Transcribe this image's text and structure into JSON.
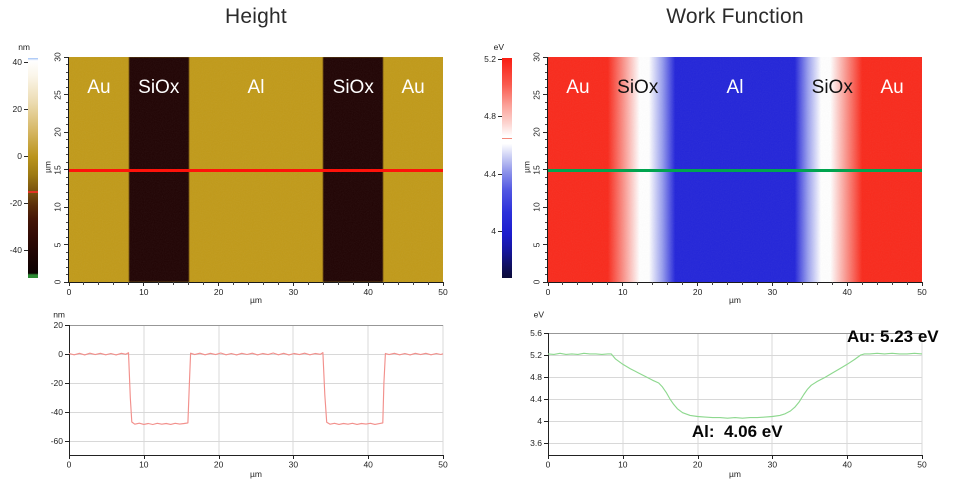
{
  "height_panel": {
    "title": "Height",
    "colorbar": {
      "unit": "nm",
      "top_value": 42,
      "bottom_value": -51.5,
      "ticks": [
        40,
        20,
        0,
        -20,
        -40
      ],
      "marker_value": -15,
      "marker_color": "#e23323",
      "stops": [
        [
          0,
          "#9fc0f5"
        ],
        [
          1.2,
          "#ffffff"
        ],
        [
          8,
          "#fbf6ea"
        ],
        [
          20,
          "#ecdcb2"
        ],
        [
          33,
          "#d6b765"
        ],
        [
          45,
          "#ba941c"
        ],
        [
          53,
          "#9d7a13"
        ],
        [
          61,
          "#77500e"
        ],
        [
          67,
          "#5a2d09"
        ],
        [
          73,
          "#451607"
        ],
        [
          81,
          "#320b05"
        ],
        [
          91,
          "#1a0403"
        ],
        [
          97.8,
          "#0c0101"
        ],
        [
          98.6,
          "#2d8a34"
        ],
        [
          100,
          "#2d8a34"
        ]
      ]
    },
    "map": {
      "base_color": "#c19a19",
      "band_color": "#200303",
      "label_colors": [
        "#ffffff",
        "#ffffff",
        "#ffffff",
        "#ffffff",
        "#ffffff"
      ],
      "scan_line_color": "#fe120a"
    }
  },
  "wf_panel": {
    "title": "Work Function",
    "colorbar": {
      "unit": "eV",
      "top_value": 5.21,
      "bottom_value": 3.68,
      "ticks": [
        5.2,
        4.8,
        4.4,
        4
      ],
      "marker_value": 4.65,
      "marker_color": "#f4897b",
      "stops": [
        [
          0,
          "#f91d12"
        ],
        [
          12,
          "#f95a4e"
        ],
        [
          22,
          "#fba49c"
        ],
        [
          30,
          "#fdd6d2"
        ],
        [
          35.5,
          "#ffffff"
        ],
        [
          39,
          "#ffffff"
        ],
        [
          45,
          "#c9cdf4"
        ],
        [
          52,
          "#8b91ea"
        ],
        [
          60,
          "#5257e2"
        ],
        [
          70,
          "#2d31da"
        ],
        [
          80,
          "#1c1ccd"
        ],
        [
          88,
          "#15159a"
        ],
        [
          95,
          "#0f0f5c"
        ],
        [
          100,
          "#0b0b38"
        ]
      ]
    },
    "map": {
      "gradient": [
        [
          0,
          "#f92a1c"
        ],
        [
          16,
          "#f92a1c"
        ],
        [
          20,
          "#fa8e85"
        ],
        [
          24.5,
          "#ffffff"
        ],
        [
          27,
          "#ffffff"
        ],
        [
          30.5,
          "#9aa0ee"
        ],
        [
          34,
          "#2325d9"
        ],
        [
          66,
          "#2325d9"
        ],
        [
          69.5,
          "#9aa0ee"
        ],
        [
          73,
          "#ffffff"
        ],
        [
          75.5,
          "#ffffff"
        ],
        [
          80,
          "#fa8e85"
        ],
        [
          84,
          "#f92a1c"
        ],
        [
          100,
          "#f92a1c"
        ]
      ],
      "label_colors": [
        "#ffffff",
        "#111111",
        "#ffffff",
        "#111111",
        "#ffffff"
      ],
      "scan_line_color": "#00a44f"
    }
  },
  "chart_data": [
    {
      "id": "height_map",
      "type": "heatmap",
      "title": "Height",
      "value_unit": "nm",
      "x_range_um": [
        0,
        50
      ],
      "y_range_um": [
        0,
        30
      ],
      "x_ticks_um": [
        0,
        10,
        20,
        30,
        40,
        50
      ],
      "y_ticks_um": [
        0,
        5,
        10,
        15,
        20,
        25,
        30
      ],
      "xlabel": "µm",
      "ylabel": "µm",
      "colorbar_ticks": [
        40,
        20,
        0,
        -20,
        -40
      ],
      "colorbar_marker": -15,
      "scan_line_y_um": 14.9,
      "regions": [
        {
          "material": "Au",
          "from_um": 0,
          "to_um": 8,
          "height_nm": 0
        },
        {
          "material": "SiOx",
          "from_um": 8,
          "to_um": 16,
          "height_nm": -48
        },
        {
          "material": "Al",
          "from_um": 16,
          "to_um": 34,
          "height_nm": 0
        },
        {
          "material": "SiOx",
          "from_um": 34,
          "to_um": 42,
          "height_nm": -48
        },
        {
          "material": "Au",
          "from_um": 42,
          "to_um": 50,
          "height_nm": 0
        }
      ]
    },
    {
      "id": "wf_map",
      "type": "heatmap",
      "title": "Work Function",
      "value_unit": "eV",
      "x_range_um": [
        0,
        50
      ],
      "y_range_um": [
        0,
        30
      ],
      "x_ticks_um": [
        0,
        10,
        20,
        30,
        40,
        50
      ],
      "y_ticks_um": [
        0,
        5,
        10,
        15,
        20,
        25,
        30
      ],
      "xlabel": "µm",
      "ylabel": "µm",
      "colorbar_ticks": [
        5.2,
        4.8,
        4.4,
        4
      ],
      "colorbar_marker": 4.65,
      "scan_line_y_um": 14.9,
      "regions": [
        {
          "material": "Au",
          "from_um": 0,
          "to_um": 8,
          "wf_ev": 5.23
        },
        {
          "material": "SiOx",
          "from_um": 8,
          "to_um": 16
        },
        {
          "material": "Al",
          "from_um": 16,
          "to_um": 34,
          "wf_ev": 4.06
        },
        {
          "material": "SiOx",
          "from_um": 34,
          "to_um": 42
        },
        {
          "material": "Au",
          "from_um": 42,
          "to_um": 50,
          "wf_ev": 5.23
        }
      ]
    },
    {
      "id": "height_profile",
      "type": "line",
      "xlabel": "µm",
      "ylabel": "nm",
      "xlim": [
        0,
        50
      ],
      "ylim": [
        -69.5,
        20
      ],
      "xticks": [
        0,
        10,
        20,
        30,
        40,
        50
      ],
      "yticks": [
        20,
        0,
        -20,
        -40,
        -60
      ],
      "grid": true,
      "line_color": "#f2908c",
      "points": [
        [
          0,
          0.4
        ],
        [
          0.7,
          -0.5
        ],
        [
          1.4,
          0.5
        ],
        [
          2.1,
          -0.6
        ],
        [
          2.8,
          0.6
        ],
        [
          3.5,
          -0.4
        ],
        [
          4.2,
          0.5
        ],
        [
          4.9,
          -0.5
        ],
        [
          5.6,
          0.4
        ],
        [
          6.3,
          -0.6
        ],
        [
          7,
          0.5
        ],
        [
          7.6,
          -0.2
        ],
        [
          7.95,
          0.9
        ],
        [
          8.2,
          -30
        ],
        [
          8.4,
          -46.8
        ],
        [
          8.8,
          -48.3
        ],
        [
          9.4,
          -47.6
        ],
        [
          10,
          -48.4
        ],
        [
          10.6,
          -47.8
        ],
        [
          11.2,
          -48.5
        ],
        [
          11.8,
          -47.7
        ],
        [
          12.4,
          -48.3
        ],
        [
          13,
          -47.8
        ],
        [
          13.6,
          -48.4
        ],
        [
          14.2,
          -47.7
        ],
        [
          14.8,
          -48.2
        ],
        [
          15.4,
          -47.8
        ],
        [
          15.9,
          -47.4
        ],
        [
          16.1,
          -20
        ],
        [
          16.25,
          0.6
        ],
        [
          16.8,
          -0.4
        ],
        [
          17.5,
          0.6
        ],
        [
          18.2,
          -0.5
        ],
        [
          18.9,
          0.5
        ],
        [
          19.6,
          -0.4
        ],
        [
          20.3,
          0.7
        ],
        [
          21,
          -0.5
        ],
        [
          21.7,
          0.4
        ],
        [
          22.4,
          -0.6
        ],
        [
          23.1,
          0.5
        ],
        [
          23.8,
          -0.3
        ],
        [
          24.5,
          0.6
        ],
        [
          25.2,
          -0.6
        ],
        [
          25.9,
          0.4
        ],
        [
          26.6,
          -0.4
        ],
        [
          27.3,
          0.7
        ],
        [
          28,
          -0.5
        ],
        [
          28.7,
          0.5
        ],
        [
          29.4,
          -0.6
        ],
        [
          30.1,
          0.4
        ],
        [
          30.8,
          -0.4
        ],
        [
          31.5,
          0.6
        ],
        [
          32.2,
          -0.5
        ],
        [
          32.9,
          0.4
        ],
        [
          33.6,
          -0.2
        ],
        [
          33.95,
          1
        ],
        [
          34.2,
          -28
        ],
        [
          34.45,
          -46.9
        ],
        [
          34.9,
          -48.3
        ],
        [
          35.5,
          -47.7
        ],
        [
          36.1,
          -48.4
        ],
        [
          36.7,
          -47.8
        ],
        [
          37.3,
          -48.3
        ],
        [
          37.9,
          -47.7
        ],
        [
          38.5,
          -48.4
        ],
        [
          39.1,
          -47.8
        ],
        [
          39.7,
          -48.2
        ],
        [
          40.3,
          -47.7
        ],
        [
          40.9,
          -48.4
        ],
        [
          41.5,
          -47.9
        ],
        [
          41.95,
          -47.4
        ],
        [
          42.1,
          -20
        ],
        [
          42.3,
          0.4
        ],
        [
          42.8,
          -0.4
        ],
        [
          43.5,
          0.5
        ],
        [
          44.2,
          -0.5
        ],
        [
          44.9,
          0.4
        ],
        [
          45.6,
          -0.6
        ],
        [
          46.3,
          0.5
        ],
        [
          47,
          -0.4
        ],
        [
          47.7,
          0.5
        ],
        [
          48.4,
          -0.5
        ],
        [
          49.1,
          0.4
        ],
        [
          49.7,
          -0.3
        ],
        [
          50,
          0.2
        ]
      ]
    },
    {
      "id": "wf_profile",
      "type": "line",
      "xlabel": "µm",
      "ylabel": "eV",
      "xlim": [
        0,
        50
      ],
      "ylim": [
        3.38,
        5.6
      ],
      "xticks": [
        0,
        10,
        20,
        30,
        40,
        50
      ],
      "yticks": [
        5.6,
        5.2,
        4.8,
        4.4,
        4,
        3.6
      ],
      "grid": true,
      "line_color": "#8ed88f",
      "points": [
        [
          0,
          5.22
        ],
        [
          0.8,
          5.21
        ],
        [
          1.6,
          5.23
        ],
        [
          2.4,
          5.21
        ],
        [
          3.2,
          5.22
        ],
        [
          4,
          5.21
        ],
        [
          4.8,
          5.23
        ],
        [
          5.6,
          5.22
        ],
        [
          6.4,
          5.22
        ],
        [
          7.2,
          5.21
        ],
        [
          8,
          5.22
        ],
        [
          8.45,
          5.22
        ],
        [
          9,
          5.13
        ],
        [
          10,
          5.03
        ],
        [
          11,
          4.95
        ],
        [
          12,
          4.88
        ],
        [
          13,
          4.81
        ],
        [
          14,
          4.74
        ],
        [
          14.8,
          4.69
        ],
        [
          15.3,
          4.62
        ],
        [
          15.8,
          4.52
        ],
        [
          16.3,
          4.4
        ],
        [
          16.8,
          4.3
        ],
        [
          17.3,
          4.22
        ],
        [
          18,
          4.15
        ],
        [
          19,
          4.1
        ],
        [
          20,
          4.08
        ],
        [
          21,
          4.07
        ],
        [
          22,
          4.06
        ],
        [
          23,
          4.06
        ],
        [
          24,
          4.05
        ],
        [
          25,
          4.06
        ],
        [
          26,
          4.05
        ],
        [
          27,
          4.06
        ],
        [
          28,
          4.06
        ],
        [
          29,
          4.07
        ],
        [
          30,
          4.08
        ],
        [
          31,
          4.1
        ],
        [
          31.7,
          4.13
        ],
        [
          32.4,
          4.18
        ],
        [
          33,
          4.25
        ],
        [
          33.6,
          4.35
        ],
        [
          34.2,
          4.48
        ],
        [
          34.7,
          4.58
        ],
        [
          35.2,
          4.65
        ],
        [
          36,
          4.72
        ],
        [
          37,
          4.79
        ],
        [
          38,
          4.87
        ],
        [
          39,
          4.95
        ],
        [
          40,
          5.03
        ],
        [
          41,
          5.12
        ],
        [
          41.8,
          5.2
        ],
        [
          42.3,
          5.22
        ],
        [
          43,
          5.22
        ],
        [
          44,
          5.23
        ],
        [
          45,
          5.22
        ],
        [
          46,
          5.23
        ],
        [
          47,
          5.22
        ],
        [
          48,
          5.22
        ],
        [
          49,
          5.23
        ],
        [
          50,
          5.22
        ]
      ],
      "annotations": [
        {
          "text": "Au: 5.23 eV",
          "x_um": 46.1,
          "y": 5.44
        },
        {
          "text": "Al:  4.06 eV",
          "x_um": 25.3,
          "y": 3.71
        }
      ]
    }
  ]
}
